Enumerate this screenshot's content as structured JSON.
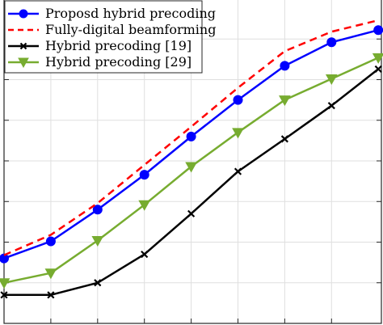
{
  "chart_data": {
    "type": "line",
    "title": "",
    "xlabel": "",
    "ylabel": "",
    "x": [
      1,
      2,
      3,
      4,
      5,
      6,
      7,
      8,
      9
    ],
    "xlim": [
      1,
      9
    ],
    "ylim": [
      0,
      8
    ],
    "grid": true,
    "legend_position": "top-left",
    "series": [
      {
        "name": "Proposd hybrid precoding",
        "color": "#0000ff",
        "line_style": "solid",
        "marker": "circle",
        "values": [
          1.6,
          2.02,
          2.8,
          3.66,
          4.6,
          5.5,
          6.34,
          6.92,
          7.22
        ]
      },
      {
        "name": "Fully-digital beamforming",
        "color": "#ff0000",
        "line_style": "dashed",
        "marker": "none",
        "values": [
          1.68,
          2.18,
          2.96,
          3.9,
          4.84,
          5.8,
          6.7,
          7.18,
          7.46
        ]
      },
      {
        "name": "Hybrid precoding [19]",
        "color": "#000000",
        "line_style": "solid",
        "marker": "x",
        "values": [
          0.7,
          0.7,
          1.0,
          1.7,
          2.7,
          3.74,
          4.54,
          5.36,
          6.26
        ]
      },
      {
        "name": "Hybrid precoding [29]",
        "color": "#77ac30",
        "line_style": "solid",
        "marker": "triangle-down",
        "values": [
          1.0,
          1.24,
          2.04,
          2.92,
          3.86,
          4.7,
          5.5,
          6.02,
          6.54
        ]
      }
    ]
  }
}
